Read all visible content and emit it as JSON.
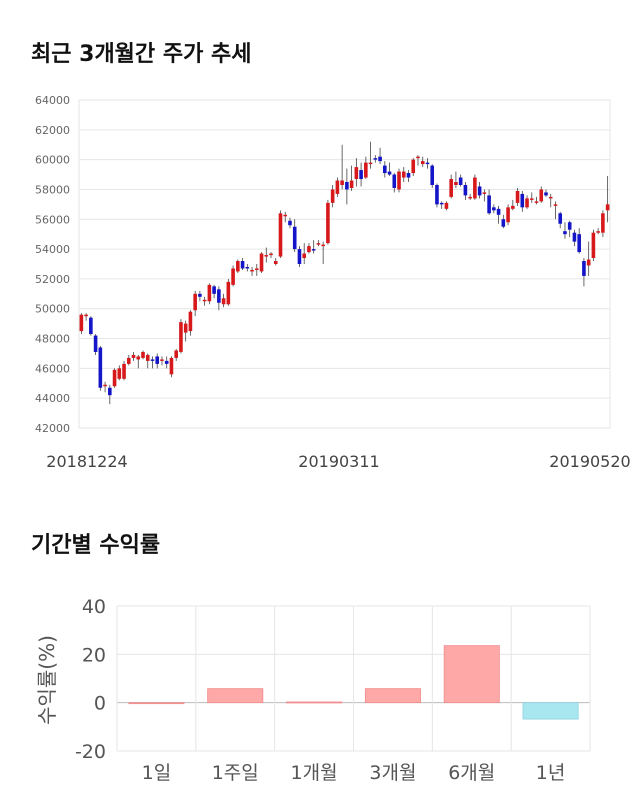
{
  "titles": {
    "price_trend": "최근 3개월간 주가 추세",
    "period_returns": "기간별 수익률"
  },
  "colors": {
    "up": "#d7191c",
    "down": "#1414c8",
    "positive_bar": "#ffa8a8",
    "negative_bar": "#a8e6f0",
    "grid": "#e6e6e6"
  },
  "chart_data": [
    {
      "type": "candlestick",
      "title": "최근 3개월간 주가 추세",
      "ylim": [
        42000,
        64000
      ],
      "y_ticks": [
        "64000",
        "62000",
        "60000",
        "58000",
        "56000",
        "54000",
        "52000",
        "50000",
        "48000",
        "46000",
        "44000",
        "42000"
      ],
      "x_labels": [
        "20181224",
        "20190311",
        "20190520"
      ],
      "grid": true,
      "candles": [
        [
          48500,
          49600,
          48300,
          49700
        ],
        [
          49500,
          49600,
          49200,
          49700
        ],
        [
          49400,
          48300,
          48200,
          49500
        ],
        [
          48200,
          47100,
          46900,
          48300
        ],
        [
          47400,
          44700,
          44500,
          47500
        ],
        [
          44800,
          44900,
          44400,
          45100
        ],
        [
          44700,
          44200,
          43600,
          44900
        ],
        [
          44800,
          45900,
          44700,
          46000
        ],
        [
          45300,
          46000,
          45200,
          46200
        ],
        [
          45300,
          46300,
          45200,
          46500
        ],
        [
          46300,
          46700,
          46200,
          46900
        ],
        [
          46700,
          46900,
          46500,
          47100
        ],
        [
          46600,
          46800,
          46000,
          46900
        ],
        [
          46700,
          47100,
          46600,
          47200
        ],
        [
          46500,
          46900,
          46000,
          47000
        ],
        [
          46600,
          46500,
          46000,
          46800
        ],
        [
          46800,
          46300,
          46000,
          47000
        ],
        [
          46500,
          46600,
          46200,
          46800
        ],
        [
          46500,
          46300,
          46000,
          46800
        ],
        [
          45600,
          46700,
          45400,
          46800
        ],
        [
          46700,
          47200,
          46500,
          47300
        ],
        [
          47100,
          49100,
          47000,
          49300
        ],
        [
          48400,
          49000,
          47800,
          49200
        ],
        [
          48500,
          49800,
          48200,
          49900
        ],
        [
          49900,
          51000,
          49500,
          51200
        ],
        [
          51000,
          50800,
          50500,
          51200
        ],
        [
          50600,
          50600,
          50200,
          50800
        ],
        [
          50500,
          51600,
          50300,
          51700
        ],
        [
          51500,
          51000,
          50700,
          51600
        ],
        [
          51300,
          50400,
          49900,
          51500
        ],
        [
          50300,
          50700,
          50100,
          51000
        ],
        [
          50300,
          51800,
          50200,
          52000
        ],
        [
          51600,
          52700,
          51500,
          52900
        ],
        [
          52500,
          53200,
          52400,
          53300
        ],
        [
          53200,
          52700,
          52600,
          53400
        ],
        [
          52800,
          52700,
          52500,
          53000
        ],
        [
          52600,
          52600,
          52200,
          52800
        ],
        [
          52700,
          52700,
          52200,
          53000
        ],
        [
          52500,
          53700,
          52400,
          53800
        ],
        [
          53600,
          53600,
          53100,
          54100
        ],
        [
          53700,
          53700,
          53400,
          53800
        ],
        [
          53000,
          53200,
          52900,
          53400
        ],
        [
          53500,
          56400,
          53400,
          56600
        ],
        [
          56300,
          56300,
          55800,
          56500
        ],
        [
          55900,
          55600,
          55400,
          56100
        ],
        [
          55500,
          54000,
          53800,
          56000
        ],
        [
          54000,
          53000,
          52800,
          54200
        ],
        [
          53400,
          53700,
          53000,
          54400
        ],
        [
          53800,
          54200,
          53700,
          54400
        ],
        [
          54000,
          53900,
          53700,
          54600
        ],
        [
          54400,
          54400,
          54200,
          54600
        ],
        [
          54300,
          54300,
          53000,
          54500
        ],
        [
          54400,
          57100,
          54300,
          57300
        ],
        [
          57100,
          58000,
          56800,
          58300
        ],
        [
          57700,
          58600,
          57500,
          58800
        ],
        [
          58300,
          58600,
          58000,
          61000
        ],
        [
          58500,
          58000,
          57000,
          59400
        ],
        [
          58100,
          58600,
          57900,
          59600
        ],
        [
          58700,
          59500,
          58200,
          60100
        ],
        [
          59300,
          58700,
          58200,
          59800
        ],
        [
          58800,
          59800,
          58700,
          60200
        ],
        [
          59800,
          59800,
          59400,
          61200
        ],
        [
          60100,
          60000,
          59800,
          60300
        ],
        [
          60200,
          59900,
          59700,
          60800
        ],
        [
          59600,
          59100,
          58800,
          59900
        ],
        [
          59200,
          59000,
          58900,
          59800
        ],
        [
          59000,
          58100,
          57800,
          59100
        ],
        [
          58000,
          59200,
          57800,
          59400
        ],
        [
          58800,
          59200,
          58500,
          59500
        ],
        [
          59100,
          58800,
          58500,
          59300
        ],
        [
          59100,
          60000,
          58900,
          60100
        ],
        [
          60200,
          60200,
          59600,
          60300
        ],
        [
          59700,
          59900,
          59500,
          60200
        ],
        [
          59800,
          59700,
          59400,
          60100
        ],
        [
          59600,
          58300,
          58100,
          59700
        ],
        [
          58300,
          57000,
          56800,
          58400
        ],
        [
          57100,
          57000,
          56700,
          57200
        ],
        [
          56700,
          57100,
          56600,
          57200
        ],
        [
          57500,
          58700,
          57400,
          59000
        ],
        [
          58300,
          58500,
          58100,
          59200
        ],
        [
          58800,
          58300,
          58200,
          59000
        ],
        [
          58300,
          57600,
          57300,
          58500
        ],
        [
          57500,
          57500,
          57300,
          57700
        ],
        [
          57400,
          58800,
          57300,
          59000
        ],
        [
          58200,
          57600,
          57400,
          58500
        ],
        [
          57700,
          57800,
          57200,
          58000
        ],
        [
          57600,
          56400,
          56300,
          58000
        ],
        [
          56800,
          56600,
          56400,
          57000
        ],
        [
          56700,
          56300,
          55700,
          56900
        ],
        [
          56000,
          55500,
          55400,
          56300
        ],
        [
          55800,
          56800,
          55600,
          57000
        ],
        [
          56700,
          56900,
          56600,
          57300
        ],
        [
          57100,
          57900,
          56900,
          58100
        ],
        [
          57700,
          56800,
          56500,
          57900
        ],
        [
          56800,
          57400,
          56700,
          57600
        ],
        [
          57300,
          57400,
          57100,
          57800
        ],
        [
          57200,
          57200,
          57000,
          57500
        ],
        [
          57200,
          58000,
          57100,
          58200
        ],
        [
          57800,
          57600,
          57500,
          58000
        ],
        [
          57500,
          57500,
          56800,
          57700
        ],
        [
          57000,
          57000,
          56000,
          57200
        ],
        [
          56400,
          55700,
          55400,
          56500
        ],
        [
          55200,
          55000,
          54700,
          55800
        ],
        [
          55800,
          55300,
          54800,
          55900
        ],
        [
          55100,
          54500,
          54200,
          55300
        ],
        [
          55000,
          53800,
          53700,
          55400
        ],
        [
          53200,
          52200,
          51500,
          53400
        ],
        [
          52900,
          53300,
          52200,
          54500
        ],
        [
          53400,
          55100,
          53200,
          55300
        ],
        [
          55200,
          55200,
          55000,
          55400
        ],
        [
          55100,
          56400,
          54800,
          56600
        ],
        [
          56600,
          57000,
          55800,
          58900
        ]
      ]
    },
    {
      "type": "bar",
      "categories": [
        "1일",
        "1주일",
        "1개월",
        "3개월",
        "6개월",
        "1년"
      ],
      "values": [
        0,
        5.8,
        0.3,
        5.8,
        23.6,
        -6.8
      ],
      "ylim": [
        -20,
        40
      ],
      "y_ticks": [
        "40",
        "20",
        "0",
        "-20"
      ],
      "ylabel": "수익률(%)",
      "grid": true
    }
  ]
}
